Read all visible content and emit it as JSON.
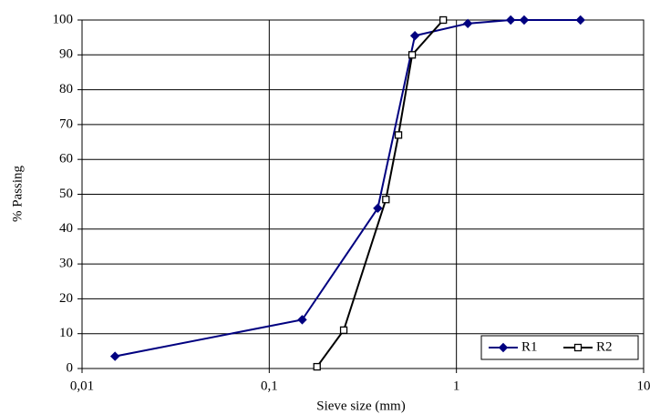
{
  "chart_data": {
    "type": "line",
    "x_label": "Sieve size (mm)",
    "y_label": "% Passing",
    "log_x": true,
    "grid": true,
    "legend": "lower right",
    "xlim": [
      0.01,
      10
    ],
    "xticks": [
      {
        "value": 0.01,
        "label": "0,01"
      },
      {
        "value": 0.1,
        "label": "0,1"
      },
      1,
      10
    ],
    "ylim": [
      0,
      100
    ],
    "yticks": [
      0,
      10,
      20,
      30,
      40,
      50,
      60,
      70,
      80,
      90,
      100
    ],
    "series": [
      {
        "name": "R1",
        "color": "#000080",
        "marker": "diamond",
        "x": [
          0.015,
          0.15,
          0.38,
          0.6,
          1.15,
          1.95,
          2.3,
          4.6
        ],
        "values": [
          3.5,
          14,
          46,
          95.5,
          99,
          100,
          100,
          100
        ]
      },
      {
        "name": "R2",
        "color": "#000000",
        "marker": "square",
        "x": [
          0.18,
          0.25,
          0.42,
          0.49,
          0.58,
          0.85
        ],
        "values": [
          0.5,
          11,
          48.5,
          67,
          90,
          100
        ]
      }
    ]
  }
}
